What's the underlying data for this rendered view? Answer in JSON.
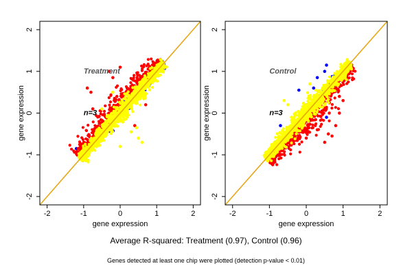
{
  "chart_data": [
    {
      "type": "scatter",
      "panel_label": "Treatment",
      "n_label": "n=3",
      "xlabel": "gene expression",
      "ylabel": "gene expression",
      "xlim": [
        -2.2,
        2.2
      ],
      "ylim": [
        -2.2,
        2.2
      ],
      "xticks": [
        -2,
        -1,
        0,
        1,
        2
      ],
      "yticks": [
        -2,
        -1,
        0,
        1,
        2
      ],
      "grid": false,
      "reference_lines": [
        {
          "slope": 1,
          "intercept": 0,
          "color": "#d94a00"
        },
        {
          "slope": 1,
          "intercept": 0,
          "color": "#e6c200"
        }
      ],
      "series": [
        {
          "color": "#0000ff",
          "core_spread": 0.08,
          "points": [
            [
              1.0,
              1.2
            ],
            [
              0.9,
              1.1
            ],
            [
              -1.2,
              -0.85
            ],
            [
              -1.0,
              -0.8
            ],
            [
              0.6,
              0.85
            ]
          ]
        },
        {
          "color": "#ff0000",
          "core_spread": 0.2,
          "points": [
            [
              -0.9,
              0.6
            ],
            [
              -0.8,
              0.5
            ],
            [
              -0.3,
              1.0
            ],
            [
              -0.2,
              0.85
            ],
            [
              0.0,
              1.1
            ],
            [
              0.5,
              0.4
            ],
            [
              0.7,
              0.2
            ],
            [
              -0.75,
              0.1
            ],
            [
              0.2,
              0.5
            ],
            [
              0.4,
              -0.3
            ]
          ]
        },
        {
          "color": "#ffff00",
          "core_spread": 0.1,
          "points": [
            [
              0.0,
              -0.8
            ],
            [
              0.5,
              -0.6
            ],
            [
              0.6,
              -0.7
            ],
            [
              0.3,
              -0.45
            ],
            [
              0.45,
              -0.35
            ],
            [
              -0.2,
              0.5
            ],
            [
              0.55,
              0.4
            ],
            [
              -0.5,
              0.1
            ]
          ]
        }
      ]
    },
    {
      "type": "scatter",
      "panel_label": "Control",
      "n_label": "n=3",
      "xlabel": "gene expression",
      "ylabel": "gene expression",
      "xlim": [
        -2.2,
        2.2
      ],
      "ylim": [
        -2.2,
        2.2
      ],
      "xticks": [
        -2,
        -1,
        0,
        1,
        2
      ],
      "yticks": [
        -2,
        -1,
        0,
        1,
        2
      ],
      "grid": false,
      "reference_lines": [
        {
          "slope": 1,
          "intercept": 0,
          "color": "#d94a00"
        },
        {
          "slope": 1,
          "intercept": 0,
          "color": "#e6c200"
        }
      ],
      "series": [
        {
          "color": "#0000ff",
          "core_spread": 0.08,
          "points": [
            [
              0.5,
              1.0
            ],
            [
              0.55,
              1.15
            ],
            [
              0.2,
              0.6
            ],
            [
              0.3,
              0.85
            ],
            [
              0.0,
              0.2
            ],
            [
              -0.2,
              0.55
            ],
            [
              -0.7,
              -0.3
            ],
            [
              0.6,
              0.7
            ],
            [
              0.55,
              -0.1
            ]
          ]
        },
        {
          "color": "#ff0000",
          "core_spread": 0.2,
          "points": [
            [
              0.6,
              -0.5
            ],
            [
              0.8,
              -0.3
            ],
            [
              0.9,
              0.0
            ],
            [
              0.5,
              -0.7
            ],
            [
              0.3,
              -0.4
            ],
            [
              0.9,
              0.4
            ],
            [
              -0.4,
              -0.55
            ],
            [
              0.0,
              -0.6
            ],
            [
              1.0,
              0.3
            ],
            [
              0.7,
              -0.55
            ]
          ]
        },
        {
          "color": "#ffff00",
          "core_spread": 0.1,
          "points": [
            [
              -0.6,
              0.3
            ],
            [
              -0.5,
              0.2
            ],
            [
              0.1,
              0.7
            ],
            [
              0.5,
              0.2
            ],
            [
              -0.4,
              -0.1
            ],
            [
              0.2,
              0.4
            ]
          ]
        }
      ]
    }
  ],
  "summary_text": "Average R-squared: Treatment (0.97), Control (0.96)",
  "footnote_text": "Genes detected at least one chip were plotted (detection p-value < 0.01)"
}
